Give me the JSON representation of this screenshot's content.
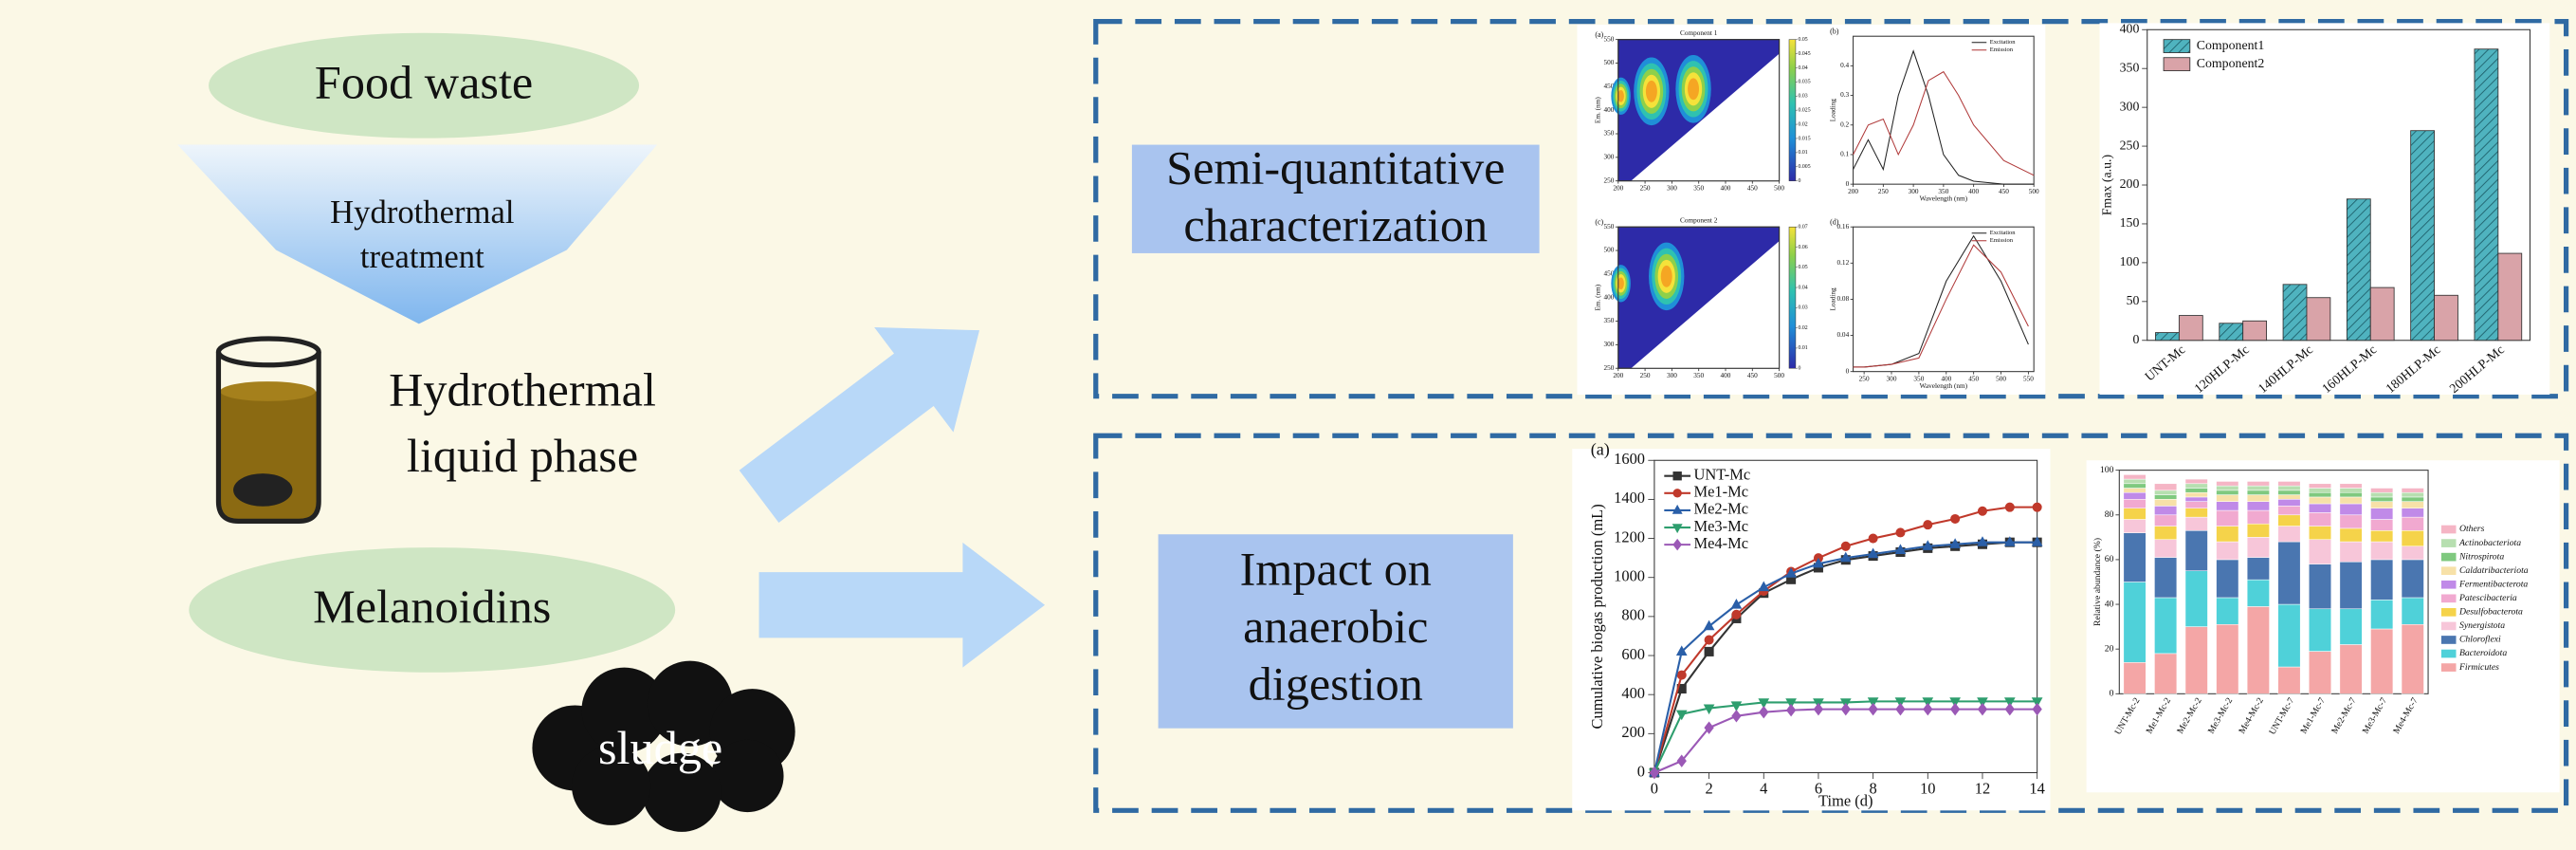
{
  "labels": {
    "food_waste": "Food waste",
    "treatment": [
      "Hydrothermal",
      "treatment"
    ],
    "liquid_phase": [
      "Hydrothermal",
      "liquid phase"
    ],
    "melanoidins": "Melanoidins",
    "sludge": "sludge",
    "characterization": [
      "Semi-quantitative",
      "characterization"
    ],
    "digestion": [
      "Impact on",
      "anaerobic",
      "digestion"
    ]
  },
  "chart_data": [
    {
      "type": "contour",
      "panel_label": "(a)",
      "title": "Component 1",
      "ylabel": "Em. (nm)",
      "xlim": [
        200,
        500
      ],
      "xticks": [
        200,
        250,
        300,
        350,
        400,
        450,
        500
      ],
      "ylim": [
        250,
        550
      ],
      "yticks": [
        250,
        300,
        350,
        400,
        450,
        500,
        550
      ],
      "peaks": [
        {
          "x": 205,
          "y": 430
        },
        {
          "x": 262,
          "y": 440
        },
        {
          "x": 340,
          "y": 445
        }
      ],
      "colorbar": {
        "lim": [
          0,
          0.05
        ],
        "ticks": [
          0,
          0.005,
          0.01,
          0.015,
          0.02,
          0.025,
          0.03,
          0.035,
          0.04,
          0.045,
          0.05
        ]
      }
    },
    {
      "type": "line",
      "panel_label": "(b)",
      "xlabel": "Wavelength (nm)",
      "ylabel": "Loading",
      "xlim": [
        200,
        500
      ],
      "xticks": [
        200,
        250,
        300,
        350,
        400,
        450,
        500
      ],
      "ylim": [
        0,
        0.5
      ],
      "yticks": [
        0,
        0.1,
        0.2,
        0.3,
        0.4
      ],
      "legend": "upper right",
      "x": [
        200,
        225,
        250,
        275,
        300,
        325,
        350,
        375,
        400,
        450,
        500
      ],
      "series": [
        {
          "name": "Excitation",
          "color": "#222222",
          "values": [
            0.05,
            0.15,
            0.05,
            0.3,
            0.45,
            0.3,
            0.1,
            0.03,
            0.01,
            0,
            0
          ]
        },
        {
          "name": "Emission",
          "color": "#b03a3a",
          "values": [
            0.1,
            0.2,
            0.22,
            0.1,
            0.2,
            0.35,
            0.38,
            0.3,
            0.2,
            0.08,
            0.03
          ]
        }
      ]
    },
    {
      "type": "contour",
      "panel_label": "(c)",
      "title": "Component 2",
      "ylabel": "Em. (nm)",
      "xlim": [
        200,
        500
      ],
      "xticks": [
        200,
        250,
        300,
        350,
        400,
        450,
        500
      ],
      "ylim": [
        250,
        550
      ],
      "yticks": [
        250,
        300,
        350,
        400,
        450,
        500,
        550
      ],
      "peaks": [
        {
          "x": 205,
          "y": 430
        },
        {
          "x": 290,
          "y": 445
        }
      ],
      "colorbar": {
        "lim": [
          0,
          0.07
        ],
        "ticks": [
          0,
          0.01,
          0.02,
          0.03,
          0.04,
          0.05,
          0.06,
          0.07
        ]
      }
    },
    {
      "type": "line",
      "panel_label": "(d)",
      "xlabel": "Wavelength (nm)",
      "ylabel": "Loading",
      "xlim": [
        230,
        560
      ],
      "xticks": [
        250,
        300,
        350,
        400,
        450,
        500,
        550
      ],
      "ylim": [
        0,
        0.16
      ],
      "yticks": [
        0,
        0.04,
        0.08,
        0.12,
        0.16
      ],
      "legend": "upper right",
      "x": [
        230,
        250,
        300,
        350,
        400,
        450,
        500,
        550
      ],
      "series": [
        {
          "name": "Excitation",
          "color": "#222222",
          "values": [
            0.005,
            0.005,
            0.008,
            0.02,
            0.1,
            0.15,
            0.1,
            0.03
          ]
        },
        {
          "name": "Emission",
          "color": "#b03a3a",
          "values": [
            0.005,
            0.005,
            0.008,
            0.015,
            0.08,
            0.14,
            0.11,
            0.05
          ]
        }
      ]
    },
    {
      "type": "bar",
      "ylabel": "Fmax (a.u.)",
      "categories": [
        "UNT-Mc",
        "120HLP-Mc",
        "140HLP-Mc",
        "160HLP-Mc",
        "180HLP-Mc",
        "200HLP-Mc"
      ],
      "ylim": [
        0,
        400
      ],
      "yticks": [
        0,
        50,
        100,
        150,
        200,
        250,
        300,
        350,
        400
      ],
      "legend": "upper left",
      "series": [
        {
          "name": "Component1",
          "color": "#4fb3bf",
          "hatch": true,
          "values": [
            10,
            22,
            72,
            182,
            270,
            375
          ]
        },
        {
          "name": "Component2",
          "color": "#d9a3a8",
          "values": [
            32,
            25,
            55,
            68,
            58,
            112
          ]
        }
      ]
    },
    {
      "type": "line",
      "panel_label": "(a)",
      "xlabel": "Time (d)",
      "ylabel": "Cumulative biogas production (mL)",
      "x": [
        0,
        1,
        2,
        3,
        4,
        5,
        6,
        7,
        8,
        9,
        10,
        11,
        12,
        13,
        14
      ],
      "xlim": [
        0,
        14
      ],
      "xticks": [
        0,
        2,
        4,
        6,
        8,
        10,
        12,
        14
      ],
      "ylim": [
        0,
        1600
      ],
      "yticks": [
        0,
        200,
        400,
        600,
        800,
        1000,
        1200,
        1400,
        1600
      ],
      "legend": "upper left",
      "series": [
        {
          "name": "UNT-Mc",
          "color": "#333333",
          "marker": "square",
          "values": [
            0,
            430,
            620,
            790,
            920,
            990,
            1050,
            1090,
            1110,
            1130,
            1150,
            1160,
            1170,
            1180,
            1180
          ]
        },
        {
          "name": "Me1-Mc",
          "color": "#c0392b",
          "marker": "circle",
          "values": [
            0,
            500,
            680,
            810,
            930,
            1030,
            1100,
            1160,
            1200,
            1230,
            1270,
            1300,
            1340,
            1360,
            1360
          ]
        },
        {
          "name": "Me2-Mc",
          "color": "#2a5fa8",
          "marker": "triangle",
          "values": [
            0,
            620,
            750,
            860,
            950,
            1020,
            1070,
            1100,
            1120,
            1140,
            1160,
            1170,
            1180,
            1180,
            1180
          ]
        },
        {
          "name": "Me3-Mc",
          "color": "#2e9e6e",
          "marker": "triangle-down",
          "values": [
            0,
            300,
            330,
            345,
            360,
            360,
            360,
            360,
            365,
            365,
            365,
            365,
            365,
            365,
            365
          ]
        },
        {
          "name": "Me4-Mc",
          "color": "#9b59b6",
          "marker": "diamond",
          "values": [
            0,
            60,
            230,
            290,
            310,
            320,
            325,
            325,
            325,
            325,
            325,
            325,
            325,
            325,
            325
          ]
        }
      ]
    },
    {
      "type": "stacked_bar",
      "ylabel": "Relative abundance (%)",
      "categories": [
        "UNT-Mc-2",
        "Me1-Mc-2",
        "Me2-Mc-2",
        "Me3-Mc-2",
        "Me4-Mc-2",
        "UNT-Mc-7",
        "Me1-Mc-7",
        "Me2-Mc-7",
        "Me3-Mc-7",
        "Me4-Mc-7"
      ],
      "ylim": [
        0,
        100
      ],
      "yticks": [
        0,
        20,
        40,
        60,
        80,
        100
      ],
      "legend": "right",
      "series": [
        {
          "name": "Firmicutes",
          "color": "#f4a6a6",
          "values": [
            14,
            18,
            30,
            31,
            39,
            12,
            19,
            22,
            29,
            31
          ]
        },
        {
          "name": "Bacteroidota",
          "color": "#4fd1d9",
          "values": [
            36,
            25,
            25,
            12,
            12,
            28,
            19,
            16,
            13,
            12
          ]
        },
        {
          "name": "Chloroflexi",
          "color": "#4a76b0",
          "values": [
            22,
            18,
            18,
            17,
            10,
            28,
            20,
            21,
            18,
            17
          ]
        },
        {
          "name": "Synergistota",
          "color": "#f7c6d9",
          "values": [
            6,
            8,
            6,
            8,
            9,
            7,
            11,
            9,
            8,
            6
          ]
        },
        {
          "name": "Desulfobacterota",
          "color": "#f5d34a",
          "values": [
            5,
            6,
            4,
            7,
            6,
            5,
            6,
            6,
            5,
            7
          ]
        },
        {
          "name": "Patescibacteria",
          "color": "#f1a9d0",
          "values": [
            4,
            5,
            3,
            7,
            6,
            4,
            6,
            6,
            5,
            6
          ]
        },
        {
          "name": "Fermentibacterota",
          "color": "#c08ae8",
          "values": [
            3,
            4,
            2,
            4,
            4,
            3,
            4,
            5,
            5,
            4
          ]
        },
        {
          "name": "Caldatribacteriota",
          "color": "#f7e1a8",
          "values": [
            2,
            3,
            2,
            3,
            3,
            2,
            3,
            3,
            3,
            3
          ]
        },
        {
          "name": "Nitrospirota",
          "color": "#7fc97f",
          "values": [
            2,
            2,
            2,
            2,
            2,
            2,
            2,
            2,
            2,
            2
          ]
        },
        {
          "name": "Actinobacteriota",
          "color": "#b7dfb0",
          "values": [
            2,
            2,
            2,
            2,
            2,
            2,
            2,
            2,
            2,
            2
          ]
        },
        {
          "name": "Others",
          "color": "#f5b5c5",
          "values": [
            2,
            3,
            2,
            2,
            2,
            2,
            2,
            2,
            2,
            2
          ]
        }
      ]
    }
  ]
}
